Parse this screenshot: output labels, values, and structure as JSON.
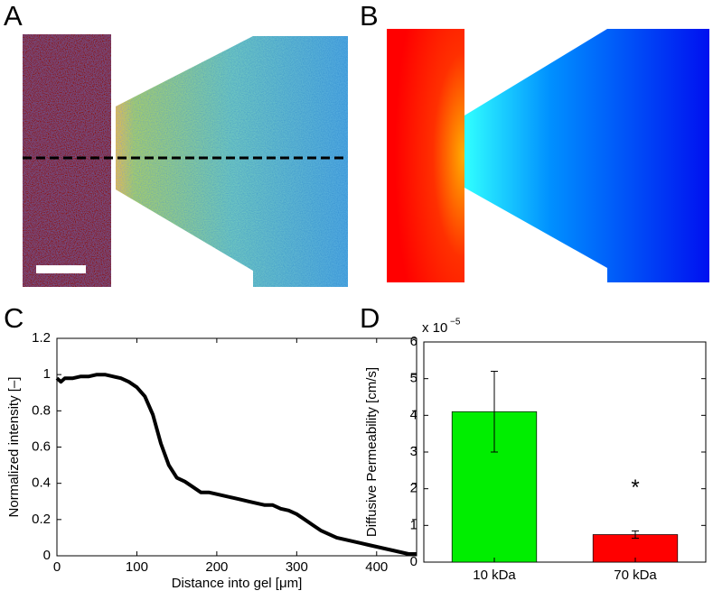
{
  "panel_labels": [
    "A",
    "B",
    "C",
    "D"
  ],
  "chart_data": [
    {
      "type": "line",
      "xlabel": "Distance into gel [μm]",
      "ylabel": "Normalized intensity  [–]",
      "x": [
        0,
        5,
        10,
        20,
        30,
        40,
        50,
        60,
        70,
        80,
        90,
        100,
        110,
        120,
        130,
        140,
        150,
        160,
        170,
        180,
        190,
        200,
        210,
        220,
        230,
        240,
        250,
        260,
        270,
        280,
        290,
        300,
        310,
        320,
        330,
        340,
        350,
        360,
        370,
        380,
        390,
        400,
        410,
        420,
        430,
        440,
        450
      ],
      "values": [
        0.98,
        0.96,
        0.98,
        0.98,
        0.99,
        0.99,
        1.0,
        1.0,
        0.99,
        0.98,
        0.96,
        0.93,
        0.88,
        0.78,
        0.62,
        0.5,
        0.43,
        0.41,
        0.38,
        0.35,
        0.35,
        0.34,
        0.33,
        0.32,
        0.31,
        0.3,
        0.29,
        0.28,
        0.28,
        0.26,
        0.25,
        0.23,
        0.2,
        0.17,
        0.14,
        0.12,
        0.1,
        0.09,
        0.08,
        0.07,
        0.06,
        0.05,
        0.04,
        0.03,
        0.02,
        0.01,
        0.01
      ],
      "color": "#000000",
      "xlim": [
        0,
        450
      ],
      "xticks": [
        0,
        100,
        200,
        300,
        400
      ],
      "ylim": [
        0,
        1.2
      ],
      "yticks": [
        0,
        0.2,
        0.4,
        0.6,
        0.8,
        1,
        1.2
      ]
    },
    {
      "type": "bar",
      "ylabel": "Diffusive Permeability  [cm/s]",
      "scale_label": {
        "base": "x 10",
        "exponent": "−5"
      },
      "categories": [
        "10 kDa",
        "70 kDa"
      ],
      "values": [
        4.1,
        0.75
      ],
      "errors": [
        1.1,
        0.1
      ],
      "colors": [
        "#00ee00",
        "#ff0000"
      ],
      "annotations": [
        {
          "text": "*",
          "category": 1,
          "y": 2.0
        }
      ],
      "ylim": [
        0,
        6
      ],
      "yticks": [
        0,
        1,
        2,
        3,
        4,
        5,
        6
      ]
    }
  ]
}
